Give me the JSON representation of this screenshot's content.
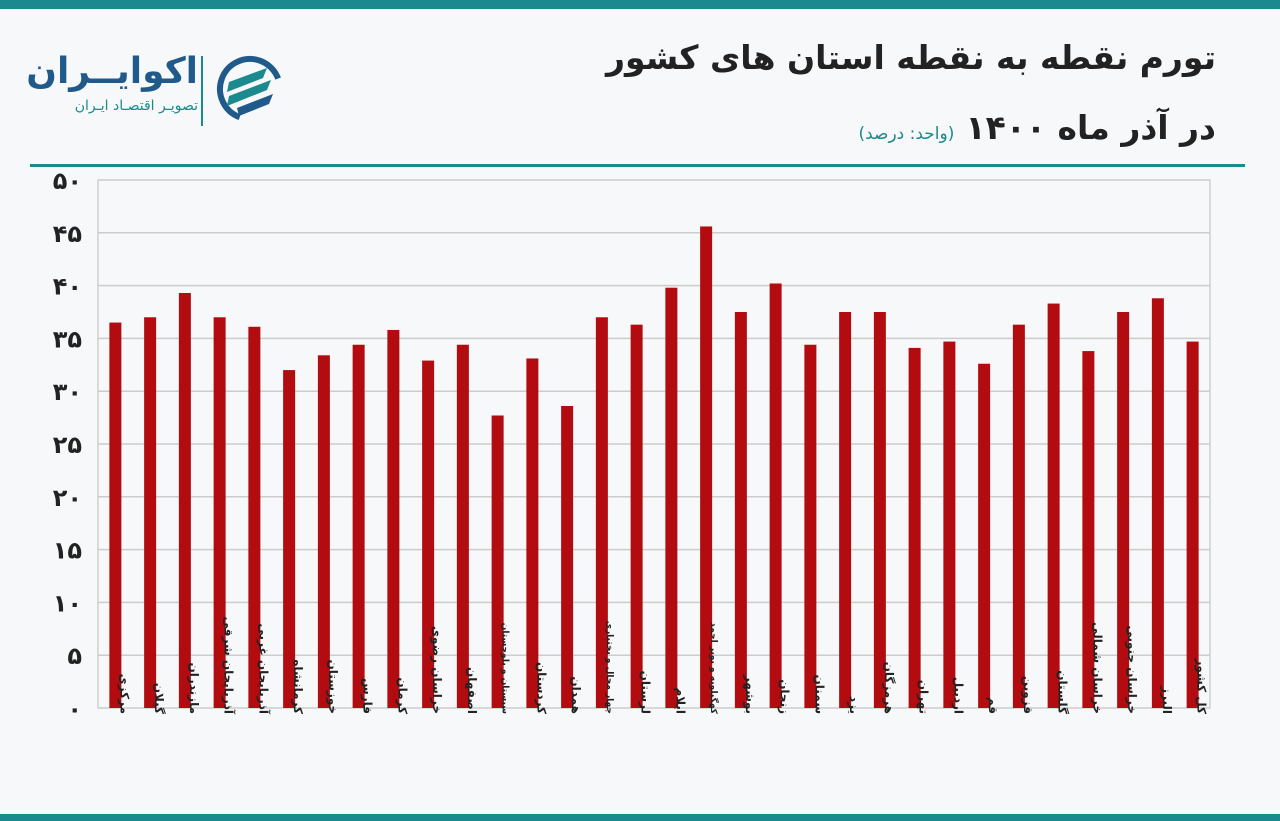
{
  "header": {
    "title": "تورم نقطه به نقطه استان های کشور",
    "subtitle": "در آذر ماه ۱۴۰۰",
    "unit_label": "(واحد: درصد)"
  },
  "logo": {
    "name": "اکوایــران",
    "tagline": "تصویـر اقتصـاد ایـران"
  },
  "colors": {
    "accent": "#1a8a8f",
    "bar": "#b20c10",
    "grid": "#cccccc"
  },
  "chart_data": {
    "type": "bar",
    "categories": [
      "مرکزی",
      "گیلان",
      "مازندران",
      "آذربایجان شرقی",
      "آذربایجان غربی",
      "کرمانشاه",
      "خوزستان",
      "فارس",
      "کرمان",
      "خراسان رضوی",
      "اصفهان",
      "سیستان و بلوچستان",
      "کردستان",
      "همدان",
      "چهار محال و بختیاری",
      "لرستان",
      "ایلام",
      "کهگیلویه و بویر احمد",
      "بوشهر",
      "زنجان",
      "سمنان",
      "یزد",
      "هرمزگان",
      "تهران",
      "اردبیل",
      "قم",
      "قزوین",
      "گلستان",
      "خراسان شمالی",
      "خراسان جنوبی",
      "البرز",
      "کل کشور"
    ],
    "values": [
      36.5,
      37.0,
      39.3,
      37.0,
      36.1,
      32.0,
      33.4,
      34.4,
      35.8,
      32.9,
      34.4,
      27.7,
      33.1,
      28.6,
      37.0,
      36.3,
      39.8,
      45.6,
      37.5,
      40.2,
      34.4,
      37.5,
      37.5,
      34.1,
      34.7,
      32.6,
      36.3,
      38.3,
      33.8,
      37.5,
      38.8,
      34.7
    ],
    "y_ticks": [
      "۰",
      "۵",
      "۱۰",
      "۱۵",
      "۲۰",
      "۲۵",
      "۳۰",
      "۳۵",
      "۴۰",
      "۴۵",
      "۵۰"
    ],
    "ylim": [
      0,
      50
    ],
    "grid": true,
    "legend": "none"
  }
}
